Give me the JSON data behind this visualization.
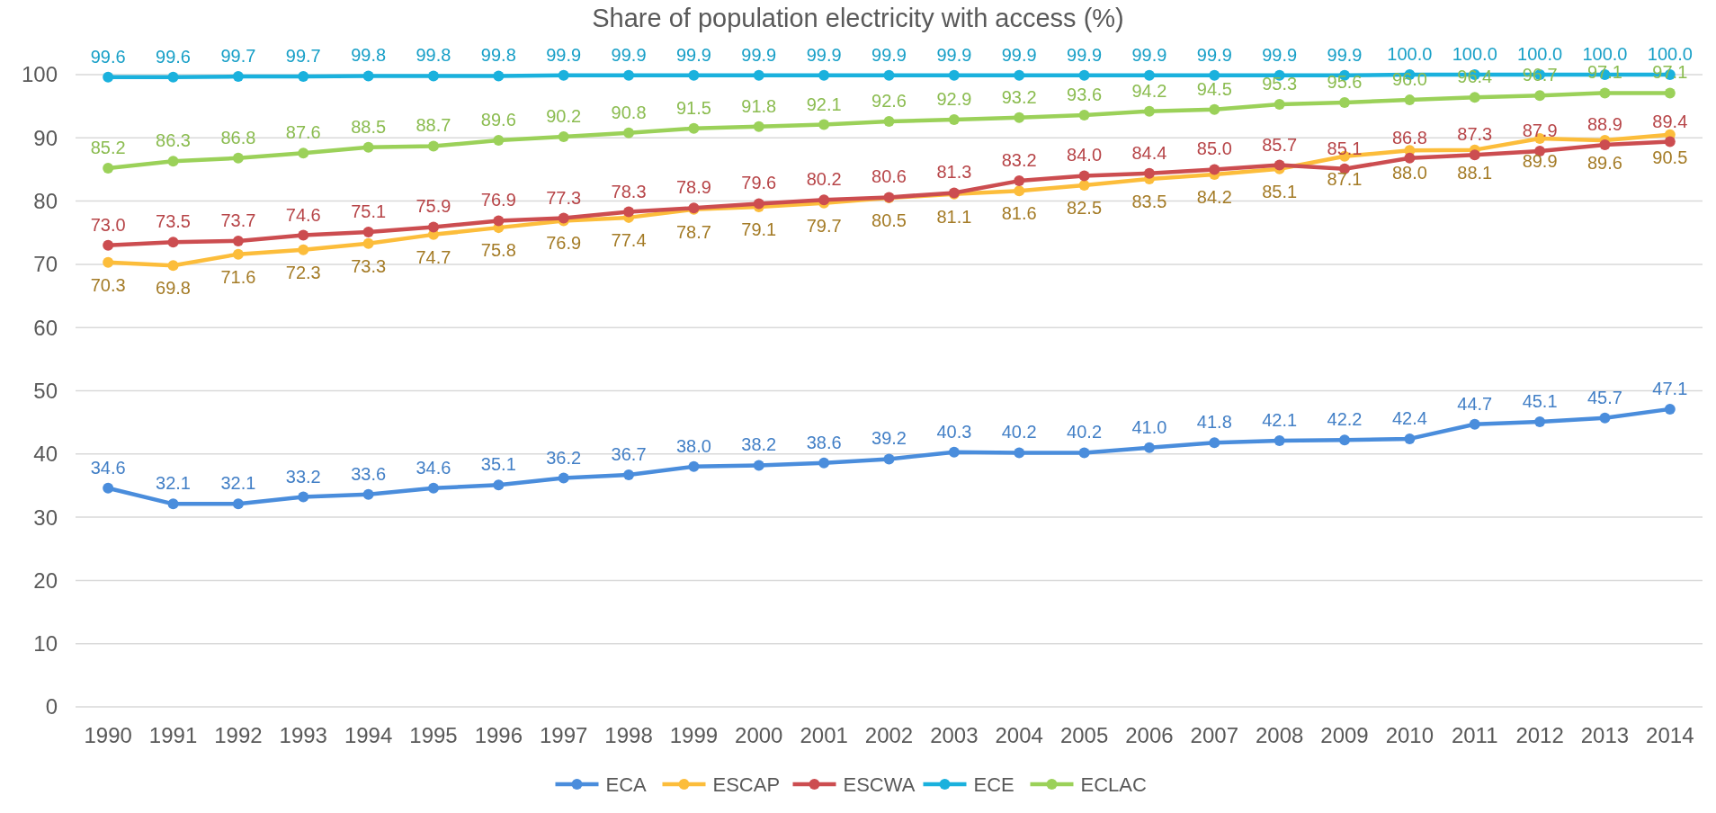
{
  "chart_data": {
    "type": "line",
    "title": "Share of population electricity with access (%)",
    "categories": [
      "1990",
      "1991",
      "1992",
      "1993",
      "1994",
      "1995",
      "1996",
      "1997",
      "1998",
      "1999",
      "2000",
      "2001",
      "2002",
      "2003",
      "2004",
      "2005",
      "2006",
      "2007",
      "2008",
      "2009",
      "2010",
      "2011",
      "2012",
      "2013",
      "2014"
    ],
    "series": [
      {
        "name": "ECA",
        "color": "#4a8ddc",
        "values": [
          34.6,
          32.1,
          32.1,
          33.2,
          33.6,
          34.6,
          35.1,
          36.2,
          36.7,
          38.0,
          38.2,
          38.6,
          39.2,
          40.3,
          40.2,
          40.2,
          41.0,
          41.8,
          42.1,
          42.2,
          42.4,
          44.7,
          45.1,
          45.7,
          47.1
        ],
        "value_labels": [
          "34.6",
          "32.1",
          "32.1",
          "33.2",
          "33.6",
          "34.6",
          "35.1",
          "36.2",
          "36.7",
          "38.0",
          "38.2",
          "38.6",
          "39.2",
          "40.3",
          "40.2",
          "40.2",
          "41.0",
          "41.8",
          "42.1",
          "42.2",
          "42.4",
          "44.7",
          "45.1",
          "45.7",
          "47.1"
        ]
      },
      {
        "name": "ESCAP",
        "color": "#fcbd3b",
        "values": [
          70.3,
          69.8,
          71.6,
          72.3,
          73.3,
          74.7,
          75.8,
          76.9,
          77.4,
          78.7,
          79.1,
          79.7,
          80.5,
          81.1,
          81.6,
          82.5,
          83.5,
          84.2,
          85.1,
          87.1,
          88.0,
          88.1,
          89.9,
          89.6,
          90.5
        ],
        "value_labels": [
          "70.3",
          "69.8",
          "71.6",
          "72.3",
          "73.3",
          "74.7",
          "75.8",
          "76.9",
          "77.4",
          "78.7",
          "79.1",
          "79.7",
          "80.5",
          "81.1",
          "81.6",
          "82.5",
          "83.5",
          "84.2",
          "85.1",
          "87.1",
          "88.0",
          "88.1",
          "89.9",
          "89.6",
          "90.5"
        ]
      },
      {
        "name": "ESCWA",
        "color": "#cc4d50",
        "values": [
          73.0,
          73.5,
          73.7,
          74.6,
          75.1,
          75.9,
          76.9,
          77.3,
          78.3,
          78.9,
          79.6,
          80.2,
          80.6,
          81.3,
          83.2,
          84.0,
          84.4,
          85.0,
          85.7,
          85.1,
          86.8,
          87.3,
          87.9,
          88.9,
          89.4
        ],
        "value_labels": [
          "73.0",
          "73.5",
          "73.7",
          "74.6",
          "75.1",
          "75.9",
          "76.9",
          "77.3",
          "78.3",
          "78.9",
          "79.6",
          "80.2",
          "80.6",
          "81.3",
          "83.2",
          "84.0",
          "84.4",
          "85.0",
          "85.7",
          "85.1",
          "86.8",
          "87.3",
          "87.9",
          "88.9",
          "89.4"
        ]
      },
      {
        "name": "ECE",
        "color": "#1ab1dd",
        "values": [
          99.6,
          99.6,
          99.7,
          99.7,
          99.8,
          99.8,
          99.8,
          99.9,
          99.9,
          99.9,
          99.9,
          99.9,
          99.9,
          99.9,
          99.9,
          99.9,
          99.9,
          99.9,
          99.9,
          99.9,
          100.0,
          100.0,
          100.0,
          100.0,
          100.0
        ],
        "value_labels": [
          "99.6",
          "99.6",
          "99.7",
          "99.7",
          "99.8",
          "99.8",
          "99.8",
          "99.9",
          "99.9",
          "99.9",
          "99.9",
          "99.9",
          "99.9",
          "99.9",
          "99.9",
          "99.9",
          "99.9",
          "99.9",
          "99.9",
          "99.9",
          "100.0",
          "100.0",
          "100.0",
          "100.0",
          "100.0"
        ]
      },
      {
        "name": "ECLAC",
        "color": "#9bd159",
        "values": [
          85.2,
          86.3,
          86.8,
          87.6,
          88.5,
          88.7,
          89.6,
          90.2,
          90.8,
          91.5,
          91.8,
          92.1,
          92.6,
          92.9,
          93.2,
          93.6,
          94.2,
          94.5,
          95.3,
          95.6,
          96.0,
          96.4,
          96.7,
          97.1,
          97.1
        ],
        "value_labels": [
          "85.2",
          "86.3",
          "86.8",
          "87.6",
          "88.5",
          "88.7",
          "89.6",
          "90.2",
          "90.8",
          "91.5",
          "91.8",
          "92.1",
          "92.6",
          "92.9",
          "93.2",
          "93.6",
          "94.2",
          "94.5",
          "95.3",
          "95.6",
          "96.0",
          "96.4",
          "96.7",
          "97.1",
          "97.1"
        ]
      }
    ],
    "ylim": [
      0,
      100
    ],
    "yticks": [
      0,
      10,
      20,
      30,
      40,
      50,
      60,
      70,
      80,
      90,
      100
    ],
    "grid": "y",
    "legend": "bottom",
    "marker": "circle",
    "line_style": "solid"
  }
}
